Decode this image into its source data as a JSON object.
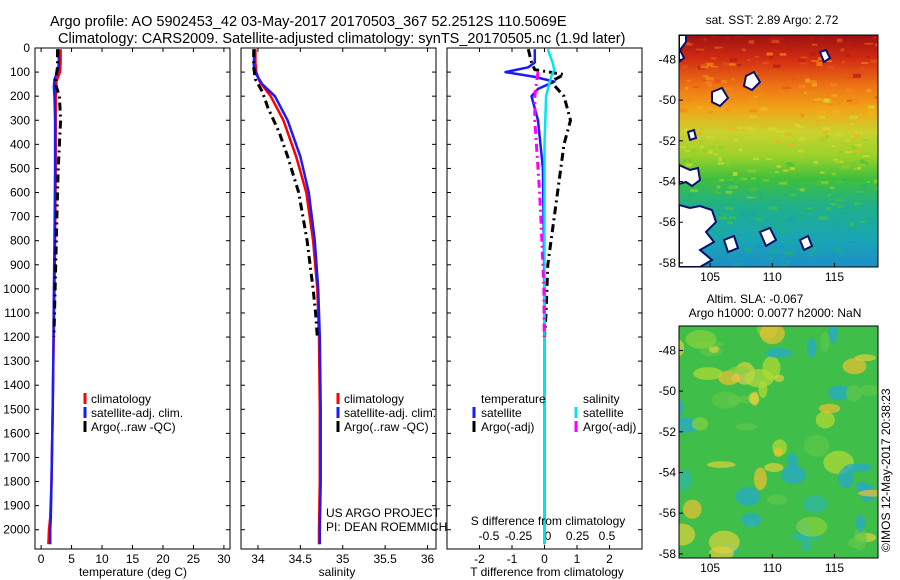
{
  "title_line1": "Argo profile: AO 5902453_42 03-May-2017 20170503_367 52.2512S 110.5069E",
  "title_line2": "Climatology: CARS2009. Satellite-adjusted climatology: synTS_20170505.nc (1.9d later)",
  "footer_project": "US ARGO PROJECT",
  "footer_pi": "PI: DEAN ROEMMICH",
  "sst_title": "sat. SST: 2.89 Argo: 2.72",
  "sla_title1": "Altim. SLA: -0.067",
  "sla_title2": "Argo h1000: 0.0077 h2000: NaN",
  "watermark": "©IMOS 12-May-2017 20:38:23",
  "colors": {
    "climatology": "#ff0000",
    "satellite": "#1a1aff",
    "argo": "#000000",
    "sal_satellite": "#00e5ee",
    "sal_argo": "#ff00ff"
  },
  "chart_data": [
    {
      "type": "line",
      "xlabel": "temperature (deg C)",
      "ylabel": "",
      "xlim": [
        -1,
        31
      ],
      "ylim": [
        2080,
        0
      ],
      "xticks": [
        0,
        5,
        10,
        15,
        20,
        25,
        30
      ],
      "xtick_labels": [
        "0",
        "5",
        "10",
        "15",
        "20",
        "25",
        "30"
      ],
      "yticks": [
        0,
        100,
        200,
        300,
        400,
        500,
        600,
        700,
        800,
        900,
        1000,
        1100,
        1200,
        1300,
        1400,
        1500,
        1600,
        1700,
        1800,
        1900,
        2000
      ],
      "ytick_labels": [
        "0",
        "100",
        "200",
        "300",
        "400",
        "500",
        "600",
        "700",
        "800",
        "900",
        "1000",
        "1100",
        "1200",
        "1300",
        "1400",
        "1500",
        "1600",
        "1700",
        "1800",
        "1900",
        "2000"
      ],
      "legend": [
        "climatology",
        "satellite-adj. clim.",
        "Argo(..raw -QC)"
      ],
      "series": [
        {
          "name": "climatology",
          "style": "solid",
          "points": [
            [
              3.2,
              5
            ],
            [
              3.2,
              60
            ],
            [
              3.1,
              100
            ],
            [
              2.5,
              140
            ],
            [
              2.4,
              200
            ],
            [
              2.4,
              300
            ],
            [
              2.4,
              500
            ],
            [
              2.3,
              800
            ],
            [
              2.2,
              1000
            ],
            [
              2.0,
              1300
            ],
            [
              1.9,
              1500
            ],
            [
              1.7,
              1800
            ],
            [
              1.5,
              1950
            ],
            [
              1.3,
              2000
            ],
            [
              1.2,
              2060
            ]
          ]
        },
        {
          "name": "satellite-adj. clim.",
          "style": "solid",
          "points": [
            [
              2.9,
              5
            ],
            [
              2.9,
              60
            ],
            [
              2.8,
              90
            ],
            [
              2.2,
              130
            ],
            [
              2.1,
              160
            ],
            [
              2.2,
              200
            ],
            [
              2.3,
              300
            ],
            [
              2.3,
              500
            ],
            [
              2.2,
              800
            ],
            [
              2.1,
              1000
            ],
            [
              2.0,
              1300
            ],
            [
              1.9,
              1500
            ],
            [
              1.7,
              1800
            ],
            [
              1.6,
              1950
            ],
            [
              1.5,
              2000
            ],
            [
              1.5,
              2060
            ]
          ]
        },
        {
          "name": "Argo(..raw -QC)",
          "style": "dashdot",
          "points": [
            [
              2.7,
              5
            ],
            [
              2.7,
              80
            ],
            [
              2.4,
              130
            ],
            [
              2.5,
              160
            ],
            [
              3.0,
              200
            ],
            [
              3.2,
              300
            ],
            [
              3.0,
              400
            ],
            [
              2.8,
              500
            ],
            [
              2.6,
              700
            ],
            [
              2.4,
              900
            ],
            [
              2.2,
              1100
            ],
            [
              2.1,
              1200
            ]
          ]
        }
      ]
    },
    {
      "type": "line",
      "xlabel": "salinity",
      "ylabel": "",
      "xlim": [
        33.8,
        36.1
      ],
      "ylim": [
        2080,
        0
      ],
      "xticks": [
        34,
        34.5,
        35,
        35.5,
        36
      ],
      "xtick_labels": [
        "34",
        "34.5",
        "35",
        "35.5",
        "36"
      ],
      "legend": [
        "climatology",
        "satellite-adj. clim.",
        "Argo(..raw -QC)"
      ],
      "series": [
        {
          "name": "climatology",
          "style": "solid",
          "points": [
            [
              33.97,
              5
            ],
            [
              33.97,
              60
            ],
            [
              33.98,
              100
            ],
            [
              34.02,
              140
            ],
            [
              34.15,
              200
            ],
            [
              34.3,
              300
            ],
            [
              34.45,
              450
            ],
            [
              34.57,
              600
            ],
            [
              34.65,
              800
            ],
            [
              34.7,
              1000
            ],
            [
              34.72,
              1200
            ],
            [
              34.73,
              1500
            ],
            [
              34.73,
              1800
            ],
            [
              34.72,
              2000
            ],
            [
              34.72,
              2060
            ]
          ]
        },
        {
          "name": "satellite-adj. clim.",
          "style": "solid",
          "points": [
            [
              33.96,
              5
            ],
            [
              33.95,
              70
            ],
            [
              33.98,
              110
            ],
            [
              34.05,
              150
            ],
            [
              34.2,
              200
            ],
            [
              34.35,
              300
            ],
            [
              34.5,
              450
            ],
            [
              34.6,
              600
            ],
            [
              34.67,
              800
            ],
            [
              34.71,
              1000
            ],
            [
              34.73,
              1200
            ],
            [
              34.74,
              1500
            ],
            [
              34.74,
              1800
            ],
            [
              34.73,
              2000
            ],
            [
              34.73,
              2060
            ]
          ]
        },
        {
          "name": "Argo(..raw -QC)",
          "style": "dashdot",
          "points": [
            [
              33.95,
              5
            ],
            [
              33.95,
              80
            ],
            [
              33.97,
              130
            ],
            [
              34.05,
              180
            ],
            [
              34.12,
              250
            ],
            [
              34.25,
              350
            ],
            [
              34.35,
              450
            ],
            [
              34.48,
              600
            ],
            [
              34.58,
              800
            ],
            [
              34.65,
              1000
            ],
            [
              34.68,
              1100
            ],
            [
              34.7,
              1200
            ]
          ]
        }
      ]
    },
    {
      "type": "line",
      "xlabel": "T difference from climatology",
      "xlabel_top": "S difference from climatology",
      "ylabel": "",
      "xlim": [
        -3,
        3
      ],
      "ylim": [
        2080,
        0
      ],
      "xticks": [
        -2,
        -1,
        0,
        1,
        2
      ],
      "xtick_labels": [
        "-2",
        "-1",
        "0",
        "1",
        "2"
      ],
      "secondary_xticks": [
        -0.5,
        -0.25,
        0,
        0.25,
        0.5
      ],
      "secondary_xtick_labels": [
        "-0.5",
        "-0.25",
        "0",
        "0.25",
        "0.5"
      ],
      "legend_headers": [
        "temperature",
        "salinity"
      ],
      "legend": [
        "satellite",
        "Argo(-adj)",
        "satellite",
        "Argo(-adj)"
      ],
      "series": [
        {
          "name": "temperature satellite",
          "style": "solid",
          "points": [
            [
              -0.3,
              5
            ],
            [
              -0.3,
              60
            ],
            [
              -0.5,
              80
            ],
            [
              -1.2,
              100
            ],
            [
              -0.3,
              120
            ],
            [
              0.3,
              140
            ],
            [
              -0.2,
              170
            ],
            [
              -0.4,
              200
            ],
            [
              -0.2,
              300
            ],
            [
              -0.05,
              500
            ],
            [
              0,
              1000
            ],
            [
              0,
              2060
            ]
          ]
        },
        {
          "name": "temperature Argo(-adj)",
          "style": "dashdot",
          "points": [
            [
              -0.5,
              5
            ],
            [
              -0.4,
              60
            ],
            [
              -0.3,
              90
            ],
            [
              0.6,
              110
            ],
            [
              0.2,
              140
            ],
            [
              0.6,
              200
            ],
            [
              0.8,
              300
            ],
            [
              0.6,
              400
            ],
            [
              0.5,
              500
            ],
            [
              0.3,
              700
            ],
            [
              0.1,
              900
            ],
            [
              0.05,
              1100
            ],
            [
              0,
              1200
            ]
          ]
        },
        {
          "name": "salinity satellite",
          "style": "solid",
          "points": [
            [
              0.1,
              5
            ],
            [
              0.25,
              60
            ],
            [
              0.3,
              90
            ],
            [
              0.2,
              120
            ],
            [
              0.05,
              200
            ],
            [
              0,
              400
            ],
            [
              0,
              2060
            ]
          ]
        },
        {
          "name": "salinity Argo(-adj)",
          "style": "dashdot",
          "points": [
            [
              -0.2,
              100
            ],
            [
              -0.3,
              200
            ],
            [
              -0.3,
              300
            ],
            [
              -0.25,
              400
            ],
            [
              -0.15,
              600
            ],
            [
              -0.08,
              800
            ],
            [
              -0.02,
              1000
            ],
            [
              -0.01,
              1200
            ]
          ]
        }
      ]
    },
    {
      "type": "heatmap",
      "title": "sat. SST: 2.89 Argo: 2.72",
      "xticks": [
        105,
        110,
        115
      ],
      "xtick_labels": [
        "105",
        "110",
        "115"
      ],
      "yticks": [
        -48,
        -50,
        -52,
        -54,
        -56,
        -58
      ],
      "ytick_labels": [
        "-48",
        "-50",
        "-52",
        "-54",
        "-56",
        "-58"
      ],
      "xlim": [
        102.5,
        118.5
      ],
      "ylim": [
        -58.2,
        -46.8
      ]
    },
    {
      "type": "heatmap",
      "title": "Altim. SLA: -0.067",
      "subtitle": "Argo h1000: 0.0077 h2000: NaN",
      "xticks": [
        105,
        110,
        115
      ],
      "xtick_labels": [
        "105",
        "110",
        "115"
      ],
      "yticks": [
        -48,
        -50,
        -52,
        -54,
        -56,
        -58
      ],
      "ytick_labels": [
        "-48",
        "-50",
        "-52",
        "-54",
        "-56",
        "-58"
      ],
      "xlim": [
        102.5,
        118.5
      ],
      "ylim": [
        -58.2,
        -46.8
      ]
    }
  ]
}
